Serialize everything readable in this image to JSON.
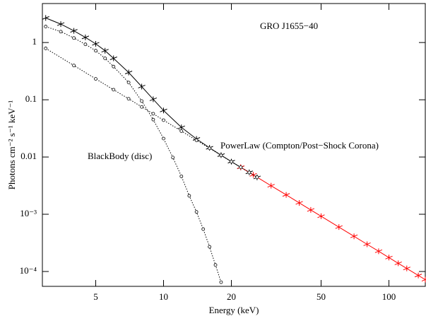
{
  "chart_data": {
    "type": "line",
    "log_x": true,
    "log_y": true,
    "xlabel": "Energy (keV)",
    "ylabel": "Photons cm⁻² s⁻¹ keV⁻¹",
    "annotations": [
      "GRO J1655−40",
      "PowerLaw (Compton/Post−Shock Corona)",
      "BlackBody (disc)"
    ],
    "xlim": [
      2.9,
      145
    ],
    "ylim": [
      5.5e-05,
      4.8
    ],
    "xticks": [
      5,
      10,
      20,
      50,
      100
    ],
    "yticks": [
      1,
      0.1,
      0.01,
      {
        "value": 0.001,
        "label": "10⁻³"
      },
      {
        "value": 0.0001,
        "label": "10⁻⁴"
      }
    ],
    "series": [
      {
        "color": "#000000",
        "style": "data",
        "x": [
          3,
          3.5,
          4,
          4.5,
          5,
          5.5,
          6,
          7,
          8,
          9,
          10,
          12,
          14,
          16,
          18,
          20,
          22,
          24,
          26
        ],
        "values": [
          2.69,
          2.1,
          1.6,
          1.23,
          0.95,
          0.72,
          0.53,
          0.3,
          0.17,
          0.102,
          0.065,
          0.033,
          0.0207,
          0.0145,
          0.0108,
          0.0083,
          0.0066,
          0.0054,
          0.0044
        ]
      },
      {
        "color": "#ff0000",
        "style": "data",
        "x": [
          22,
          25,
          30,
          35,
          40,
          45,
          50,
          60,
          70,
          80,
          90,
          100,
          110,
          120,
          135,
          145
        ],
        "values": [
          0.00664,
          0.00488,
          0.00315,
          0.00218,
          0.00158,
          0.00119,
          0.000924,
          0.000597,
          0.000412,
          0.000299,
          0.000226,
          0.000175,
          0.000139,
          0.000113,
          8.52e-05,
          7.2e-05
        ]
      },
      {
        "color": "#000000",
        "style": "dotted",
        "x": [
          3,
          4,
          5,
          6,
          7,
          8,
          9,
          10,
          12,
          14,
          16,
          18,
          20,
          22,
          24,
          26
        ],
        "values": [
          0.79,
          0.397,
          0.232,
          0.15,
          0.104,
          0.075,
          0.057,
          0.044,
          0.0284,
          0.0196,
          0.0142,
          0.0107,
          0.0083,
          0.00664,
          0.00538,
          0.00444
        ]
      },
      {
        "color": "#000000",
        "style": "dotted",
        "x": [
          3,
          3.5,
          4,
          4.5,
          5,
          5.5,
          6,
          7,
          8,
          9,
          10,
          11,
          12,
          13,
          14,
          15,
          16,
          17,
          18
        ],
        "values": [
          1.9,
          1.55,
          1.2,
          0.93,
          0.72,
          0.53,
          0.38,
          0.2,
          0.095,
          0.045,
          0.021,
          0.0098,
          0.0046,
          0.0021,
          0.0011,
          0.00055,
          0.00027,
          0.00013,
          6.5e-05
        ]
      }
    ]
  }
}
